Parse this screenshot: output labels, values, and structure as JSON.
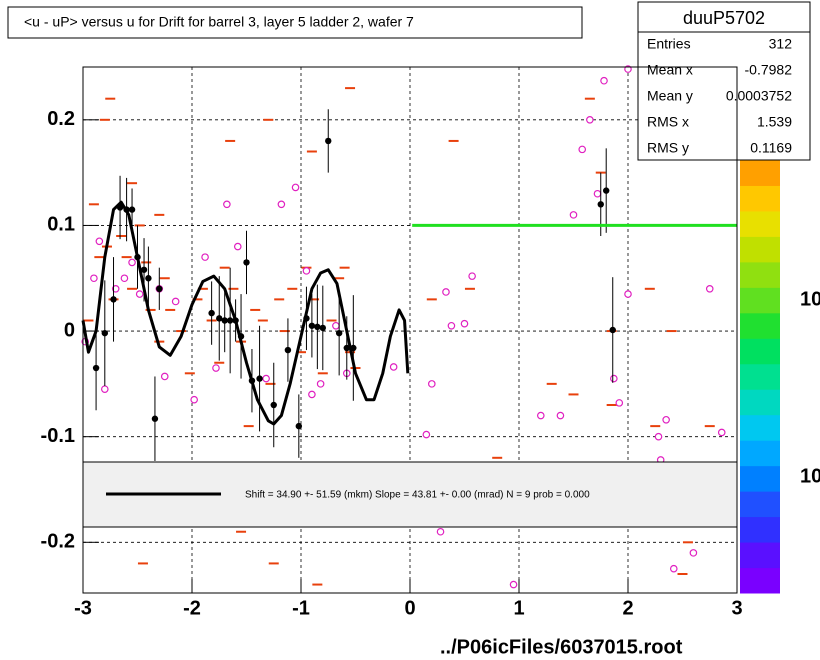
{
  "chart_data": {
    "type": "scatter",
    "title": "<u - uP>       versus   u for Drift for barrel 3, layer 5 ladder 2, wafer 7",
    "xlim": [
      -3,
      3
    ],
    "ylim": [
      -0.248,
      0.25
    ],
    "xticks": [
      -3,
      -2,
      -1,
      0,
      1,
      2,
      3
    ],
    "yticks": [
      -0.2,
      -0.1,
      0,
      0.1,
      0.2
    ],
    "grid": true,
    "footer": "../P06icFiles/6037015.root",
    "stats": {
      "title": "duuP5702",
      "rows": [
        [
          "Entries",
          "312"
        ],
        [
          "Mean x",
          "-0.7982"
        ],
        [
          "Mean y",
          "0.0003752"
        ],
        [
          "RMS x",
          "1.539"
        ],
        [
          "RMS y",
          "0.1169"
        ]
      ]
    },
    "fit_text": "Shift =    34.90 +- 51.59 (mkm) Slope =    43.81 +- 0.00 (mrad)  N = 9 prob = 0.000",
    "colorbar_labels": [
      "10",
      "10"
    ],
    "palette_colors": [
      "#7a00ff",
      "#5a10ff",
      "#3030ff",
      "#2050ff",
      "#0080ff",
      "#00a8ff",
      "#00c8f0",
      "#00d8c0",
      "#00e090",
      "#00e060",
      "#20e030",
      "#60e020",
      "#90e010",
      "#c0e000",
      "#e8e000",
      "#ffc800",
      "#ffa000"
    ],
    "series": [
      {
        "kind": "dash",
        "color": "#e8400c",
        "x": [
          -2.95,
          -2.9,
          -2.85,
          -2.78,
          -2.72,
          -2.65,
          -2.6,
          -2.55,
          -2.48,
          -2.42,
          -2.38,
          -2.3,
          -2.25,
          -2.2,
          -2.1,
          -2.02,
          -1.95,
          -1.9,
          -1.82,
          -1.75,
          -1.7,
          -1.62,
          -1.55,
          -1.48,
          -1.42,
          -1.35,
          -1.28,
          -1.2,
          -1.15,
          -1.08,
          -1.0,
          -0.95,
          -0.88,
          -0.8,
          -0.72,
          -0.65,
          -0.6,
          -0.55,
          -0.5,
          -2.75,
          -2.55,
          -2.3,
          -1.65,
          -1.3,
          -0.9,
          -0.55,
          0.4,
          0.55,
          0.8,
          1.1,
          1.3,
          1.5,
          1.65,
          1.75,
          1.85,
          2.2,
          2.25,
          2.4,
          2.55,
          2.75,
          2.85,
          -2.45,
          -2.2,
          -1.55,
          -1.25,
          -0.85,
          0.2,
          1.85,
          2.5,
          -2.8,
          -1.2
        ],
        "values": [
          0.01,
          0.12,
          0.07,
          0.08,
          0.03,
          0.09,
          0.07,
          0.04,
          0.1,
          0.065,
          0.02,
          -0.01,
          0.05,
          0.02,
          0.0,
          -0.04,
          0.03,
          0.04,
          0.01,
          -0.03,
          0.06,
          0.04,
          -0.01,
          -0.09,
          0.02,
          0.01,
          -0.05,
          0.03,
          0.0,
          0.04,
          -0.02,
          0.06,
          0.03,
          -0.04,
          0.01,
          0.05,
          0.06,
          -0.02,
          -0.035,
          0.22,
          0.14,
          0.11,
          0.18,
          0.2,
          0.17,
          0.23,
          0.18,
          0.04,
          -0.12,
          -0.16,
          -0.05,
          -0.06,
          0.22,
          0.15,
          -0.07,
          0.04,
          -0.09,
          0.0,
          -0.2,
          -0.09,
          -0.18,
          -0.22,
          -0.16,
          -0.19,
          -0.22,
          -0.24,
          0.03,
          0.0,
          -0.23,
          0.2,
          -0.17
        ]
      },
      {
        "kind": "circle",
        "color": "#e020c0",
        "x": [
          -2.98,
          -2.9,
          -2.85,
          -2.8,
          -2.7,
          -2.62,
          -2.55,
          -2.48,
          -2.3,
          -2.25,
          -2.15,
          -1.98,
          -1.88,
          -1.78,
          -1.68,
          -1.58,
          -1.32,
          -1.18,
          -1.05,
          -0.95,
          -0.9,
          -0.82,
          -0.68,
          -0.58,
          -0.15,
          0.15,
          0.2,
          0.28,
          0.33,
          0.38,
          0.5,
          0.57,
          0.95,
          1.2,
          1.38,
          1.5,
          1.58,
          1.65,
          1.72,
          1.78,
          1.87,
          1.92,
          2.0,
          2.0,
          2.28,
          2.3,
          2.35,
          2.42,
          2.6,
          2.75,
          2.86
        ],
        "values": [
          -0.01,
          0.05,
          0.085,
          -0.055,
          0.04,
          0.05,
          0.065,
          0.035,
          0.04,
          -0.043,
          0.028,
          -0.065,
          0.07,
          -0.035,
          0.12,
          0.08,
          -0.045,
          0.12,
          0.136,
          0.057,
          -0.06,
          -0.05,
          0.005,
          -0.04,
          -0.034,
          -0.098,
          -0.05,
          -0.19,
          0.037,
          0.005,
          0.007,
          0.052,
          -0.24,
          -0.08,
          -0.08,
          0.11,
          0.172,
          0.2,
          0.13,
          0.237,
          -0.045,
          -0.068,
          0.035,
          0.248,
          -0.1,
          -0.122,
          -0.084,
          -0.225,
          -0.21,
          0.04,
          -0.096
        ]
      },
      {
        "kind": "profile",
        "color": "#000000",
        "x": [
          -2.88,
          -2.8,
          -2.72,
          -2.66,
          -2.6,
          -2.55,
          -2.5,
          -2.44,
          -2.4,
          -2.34,
          -2.3,
          -1.82,
          -1.75,
          -1.7,
          -1.65,
          -1.6,
          -1.55,
          -1.5,
          -1.45,
          -1.38,
          -1.25,
          -1.12,
          -1.02,
          -0.95,
          -0.9,
          -0.85,
          -0.8,
          -0.75,
          -0.65,
          -0.58,
          -0.52,
          1.75,
          1.8,
          1.86
        ],
        "values": [
          -0.035,
          -0.002,
          0.03,
          0.117,
          0.115,
          0.115,
          0.07,
          0.058,
          0.05,
          -0.083,
          0.04,
          0.017,
          0.012,
          0.01,
          0.01,
          0.01,
          -0.005,
          0.065,
          -0.047,
          -0.045,
          -0.07,
          -0.018,
          -0.09,
          0.012,
          0.005,
          0.004,
          0.003,
          0.18,
          -0.002,
          -0.016,
          -0.016,
          0.12,
          0.133,
          0.001
        ],
        "errors": [
          0.04,
          0.05,
          0.04,
          0.03,
          0.03,
          0.02,
          0.03,
          0.03,
          0.03,
          0.04,
          0.02,
          0.03,
          0.04,
          0.03,
          0.05,
          0.02,
          0.04,
          0.03,
          0.03,
          0.05,
          0.04,
          0.03,
          0.03,
          0.03,
          0.03,
          0.04,
          0.04,
          0.03,
          0.04,
          0.03,
          0.05,
          0.03,
          0.04,
          0.05
        ]
      },
      {
        "kind": "curve",
        "color": "#000000",
        "width": 3,
        "x": [
          -3,
          -2.95,
          -2.88,
          -2.8,
          -2.72,
          -2.65,
          -2.58,
          -2.5,
          -2.4,
          -2.3,
          -2.2,
          -2.1,
          -2.0,
          -1.9,
          -1.8,
          -1.7,
          -1.6,
          -1.5,
          -1.4,
          -1.3,
          -1.25,
          -1.18,
          -1.1,
          -1.0,
          -0.9,
          -0.82,
          -0.75,
          -0.67,
          -0.6,
          -0.5,
          -0.4,
          -0.33,
          -0.25,
          -0.18,
          -0.1,
          -0.05,
          -0.02
        ],
        "values": [
          0.01,
          -0.02,
          0.0,
          0.07,
          0.115,
          0.122,
          0.11,
          0.07,
          0.02,
          -0.015,
          -0.023,
          -0.005,
          0.025,
          0.047,
          0.052,
          0.04,
          0.01,
          -0.03,
          -0.065,
          -0.085,
          -0.088,
          -0.08,
          -0.05,
          -0.005,
          0.04,
          0.055,
          0.058,
          0.045,
          0.01,
          -0.04,
          -0.065,
          -0.065,
          -0.04,
          -0.005,
          0.02,
          0.01,
          -0.04
        ]
      },
      {
        "kind": "curve",
        "color": "#20e020",
        "width": 3,
        "x": [
          0.02,
          3
        ],
        "values": [
          0.1,
          0.1
        ]
      }
    ]
  }
}
